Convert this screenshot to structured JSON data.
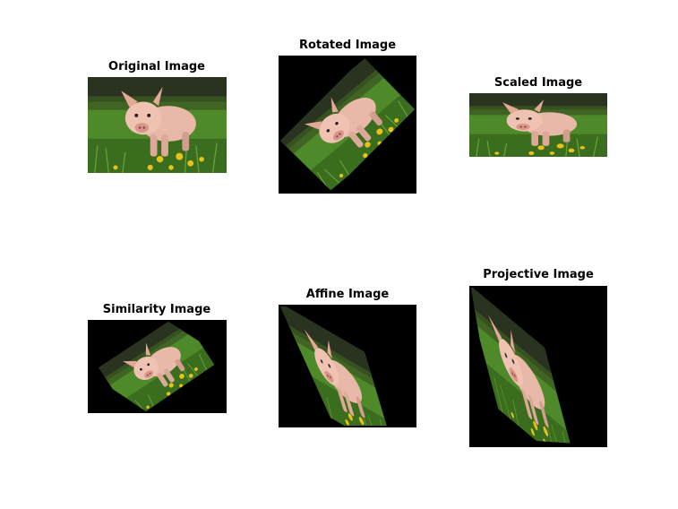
{
  "figure": {
    "panels": [
      {
        "id": "original",
        "title": "Original Image"
      },
      {
        "id": "rotated",
        "title": "Rotated Image"
      },
      {
        "id": "scaled",
        "title": "Scaled Image"
      },
      {
        "id": "similarity",
        "title": "Similarity Image"
      },
      {
        "id": "affine",
        "title": "Affine Image"
      },
      {
        "id": "projective",
        "title": "Projective Image"
      }
    ]
  },
  "colors": {
    "background": "#ffffff",
    "frame_fill": "#000000",
    "grass": "#4f8a2a",
    "grass_dark": "#2f5a18",
    "sky_dark": "#2a3320",
    "pig_pink": "#e8b8a8",
    "flower_yellow": "#e8c21a"
  }
}
